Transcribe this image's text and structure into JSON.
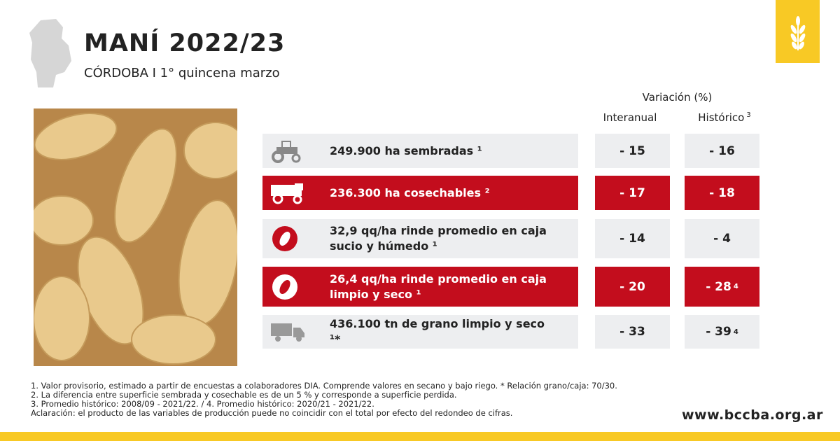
{
  "header": {
    "title": "MANÍ 2022/23",
    "subtitle": "CÓRDOBA I 1° quincena marzo"
  },
  "table": {
    "group_header": "Variación (%)",
    "columns": [
      "Interanual",
      "Histórico"
    ],
    "column_notes": [
      null,
      "3"
    ],
    "rows": [
      {
        "label": "249.900 ha sembradas ¹",
        "interanual": "- 15",
        "historico": "- 16",
        "historico_note": null
      },
      {
        "label": "236.300 ha cosechables ²",
        "interanual": "- 17",
        "historico": "- 18",
        "historico_note": null
      },
      {
        "label": "32,9 qq/ha rinde promedio en caja sucio y húmedo ¹",
        "interanual": "- 14",
        "historico": "- 4",
        "historico_note": null
      },
      {
        "label": "26,4 qq/ha rinde promedio en caja limpio y seco ¹",
        "interanual": "- 20",
        "historico": "- 28",
        "historico_note": "4"
      },
      {
        "label": "436.100 tn de grano limpio y seco ¹*",
        "interanual": "- 33",
        "historico": "- 39",
        "historico_note": "4"
      }
    ]
  },
  "footnotes": [
    "1. Valor provisorio, estimado a partir de encuestas a colaboradores DIA. Comprende valores en secano y bajo riego. * Relación grano/caja: 70/30.",
    "2. La diferencia entre superficie sembrada y cosechable es de un 5 % y corresponde a superficie perdida.",
    "3. Promedio histórico: 2008/09 - 2021/22. / 4. Promedio histórico: 2020/21 - 2021/22.",
    "Aclaración: el producto de las variables de producción puede no coincidir con el total por efecto del redondeo de cifras."
  ],
  "footer": {
    "url": "www.bccba.org.ar"
  }
}
